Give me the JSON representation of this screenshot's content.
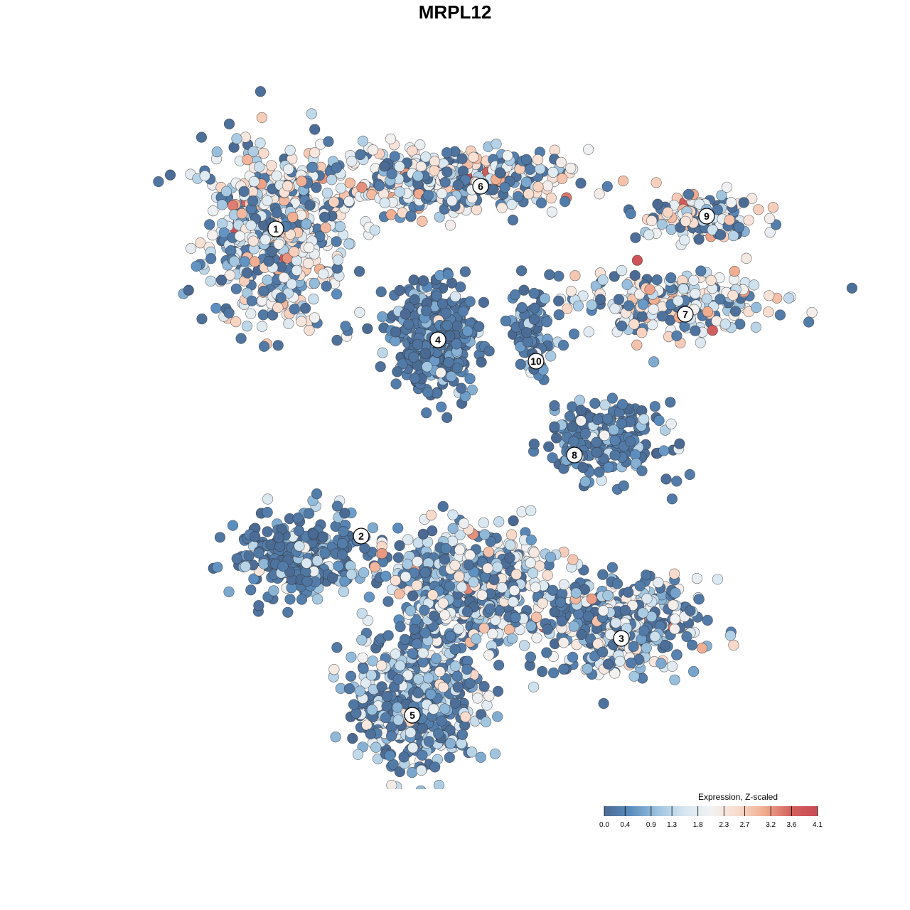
{
  "chart_data": {
    "type": "scatter",
    "title": "MRPL12",
    "xlabel": "",
    "ylabel": "",
    "legend": {
      "title": "Expression, Z-scaled",
      "position": "bottom-right",
      "ticks": [
        "0.0",
        "0.4",
        "0.9",
        "1.3",
        "1.8",
        "2.3",
        "2.7",
        "3.2",
        "3.6",
        "4.1"
      ],
      "range": [
        0.0,
        4.1
      ],
      "colors": [
        "#4a6a93",
        "#5b8ec0",
        "#9dc3df",
        "#d6e6f1",
        "#f2f2f2",
        "#f9dccd",
        "#f0ac8f",
        "#d3605e",
        "#c94a54"
      ]
    },
    "clusters": [
      {
        "label": "1",
        "x": -21.0,
        "y": 24.0
      },
      {
        "label": "6",
        "x": 3.0,
        "y": 29.0
      },
      {
        "label": "9",
        "x": 29.5,
        "y": 25.5
      },
      {
        "label": "7",
        "x": 27.0,
        "y": 14.0
      },
      {
        "label": "4",
        "x": -2.0,
        "y": 11.0
      },
      {
        "label": "10",
        "x": 9.5,
        "y": 8.5
      },
      {
        "label": "8",
        "x": 14.0,
        "y": -2.5
      },
      {
        "label": "2",
        "x": -11.0,
        "y": -12.0
      },
      {
        "label": "3",
        "x": 19.5,
        "y": -24.0
      },
      {
        "label": "5",
        "x": -5.0,
        "y": -33.0
      }
    ],
    "point_groups": [
      {
        "cluster": "1",
        "center": [
          -21.0,
          23.0
        ],
        "spread": [
          7.5,
          9.5
        ],
        "count": 520,
        "mean_expression": 1.9
      },
      {
        "cluster": "6",
        "center": [
          -1.0,
          29.5
        ],
        "spread": [
          12.0,
          3.5
        ],
        "count": 420,
        "mean_expression": 2.0
      },
      {
        "cluster": "9",
        "center": [
          29.0,
          25.5
        ],
        "spread": [
          6.0,
          2.6
        ],
        "count": 130,
        "mean_expression": 2.1
      },
      {
        "cluster": "7",
        "center": [
          25.5,
          15.5
        ],
        "spread": [
          10.0,
          3.5
        ],
        "count": 240,
        "mean_expression": 1.9
      },
      {
        "cluster": "4",
        "center": [
          -2.5,
          11.5
        ],
        "spread": [
          4.6,
          5.6
        ],
        "count": 380,
        "mean_expression": 0.5
      },
      {
        "cluster": "10",
        "center": [
          9.0,
          12.0
        ],
        "spread": [
          3.0,
          4.5
        ],
        "count": 90,
        "mean_expression": 0.5
      },
      {
        "cluster": "8",
        "center": [
          17.0,
          -1.0
        ],
        "spread": [
          6.0,
          4.0
        ],
        "count": 210,
        "mean_expression": 0.6
      },
      {
        "cluster": "2",
        "center": [
          -18.0,
          -14.0
        ],
        "spread": [
          7.0,
          4.5
        ],
        "count": 260,
        "mean_expression": 0.6
      },
      {
        "cluster": "3",
        "center": [
          19.0,
          -22.5
        ],
        "spread": [
          8.5,
          5.0
        ],
        "count": 380,
        "mean_expression": 1.6
      },
      {
        "cluster": "5",
        "center": [
          -4.5,
          -31.0
        ],
        "spread": [
          7.0,
          7.0
        ],
        "count": 480,
        "mean_expression": 1.3
      },
      {
        "cluster": "centre",
        "center": [
          2.0,
          -18.0
        ],
        "spread": [
          8.5,
          6.0
        ],
        "count": 560,
        "mean_expression": 1.5
      }
    ]
  }
}
